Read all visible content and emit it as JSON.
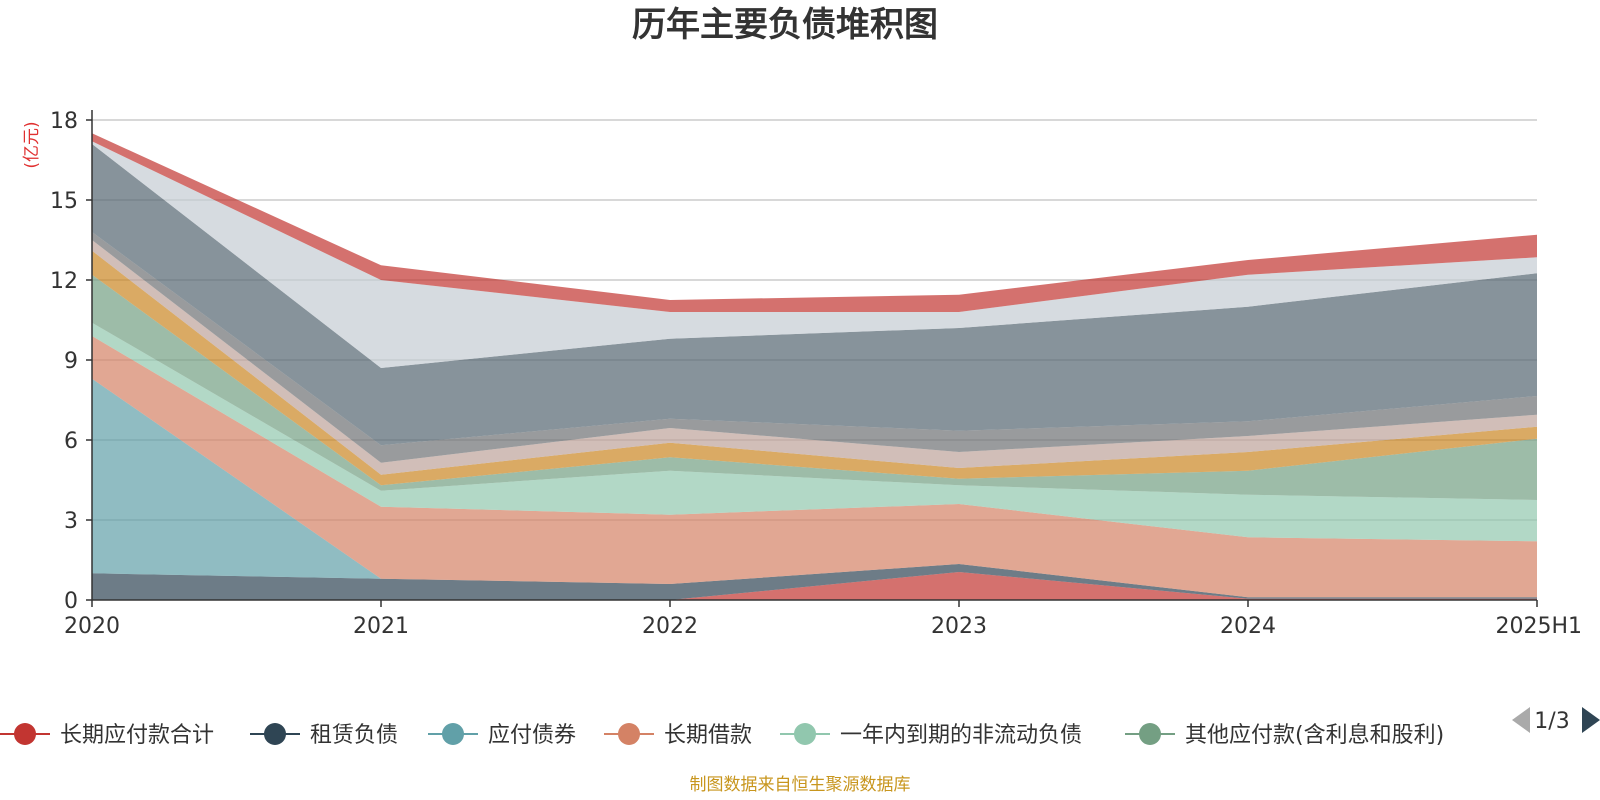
{
  "chart_data": {
    "type": "area",
    "stacked": true,
    "title": "历年主要负债堆积图",
    "y_unit": "(亿元)",
    "ylim": [
      0,
      18
    ],
    "yticks": [
      0,
      3,
      6,
      9,
      12,
      15,
      18
    ],
    "categories": [
      "2020",
      "2021",
      "2022",
      "2023",
      "2024",
      "2025H1"
    ],
    "grid": true,
    "legend_position": "bottom",
    "legend_page": "1/3",
    "series": [
      {
        "name": "长期应付款合计",
        "color": "#c23531",
        "values": [
          0,
          0,
          0,
          1.05,
          0.05,
          0.05
        ]
      },
      {
        "name": "租赁负债",
        "color": "#2f4554",
        "values": [
          1.0,
          0.8,
          0.6,
          0.3,
          0.05,
          0.05
        ]
      },
      {
        "name": "应付债券",
        "color": "#61a0a8",
        "values": [
          7.3,
          0,
          0,
          0,
          0,
          0
        ]
      },
      {
        "name": "长期借款",
        "color": "#d48265",
        "values": [
          1.6,
          2.7,
          2.6,
          2.25,
          2.25,
          2.1
        ]
      },
      {
        "name": "一年内到期的非流动负债",
        "color": "#91c7ae",
        "values": [
          0.5,
          0.6,
          1.65,
          0.7,
          1.6,
          1.55
        ]
      },
      {
        "name": "其他应付款(含利息和股利)",
        "color": "#749f83",
        "values": [
          1.8,
          0.2,
          0.5,
          0.25,
          0.9,
          2.3
        ]
      },
      {
        "name": "",
        "color": "#ca8622",
        "values": [
          0.9,
          0.4,
          0.55,
          0.4,
          0.7,
          0.45
        ]
      },
      {
        "name": "",
        "color": "#bda29a",
        "values": [
          0.4,
          0.45,
          0.55,
          0.6,
          0.6,
          0.45
        ]
      },
      {
        "name": "",
        "color": "#6e7074",
        "values": [
          0.3,
          0.65,
          0.35,
          0.8,
          0.55,
          0.7
        ]
      },
      {
        "name": "",
        "color": "#546570",
        "values": [
          3.3,
          2.9,
          3.0,
          3.85,
          4.3,
          4.6
        ]
      },
      {
        "name": "",
        "color": "#c4ccd3",
        "values": [
          0.1,
          3.3,
          1.0,
          0.6,
          1.2,
          0.6
        ]
      },
      {
        "name": "",
        "color": "#c23531",
        "values": [
          0.3,
          0.55,
          0.45,
          0.65,
          0.55,
          0.85
        ]
      }
    ]
  },
  "footer": "制图数据来自恒生聚源数据库",
  "colors": {
    "unit": "#e03030",
    "footer": "#c8961e",
    "axis": "#333333",
    "grid": "#cccccc",
    "pager": "#2f4554",
    "pager_disabled": "#aaaaaa"
  }
}
